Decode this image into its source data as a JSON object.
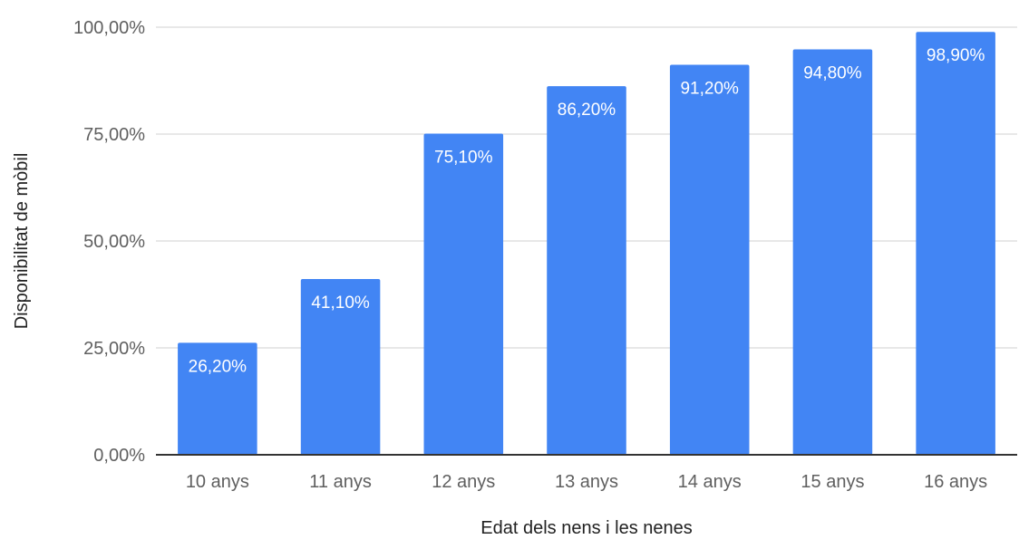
{
  "chart_data": {
    "type": "bar",
    "categories": [
      "10 anys",
      "11 anys",
      "12 anys",
      "13 anys",
      "14 anys",
      "15 anys",
      "16 anys"
    ],
    "series": [
      {
        "values": [
          26.2,
          41.1,
          75.1,
          86.2,
          91.2,
          94.8,
          98.9
        ],
        "data_labels": [
          "26,20%",
          "41,10%",
          "75,10%",
          "86,20%",
          "91,20%",
          "94,80%",
          "98,90%"
        ],
        "color": "#4285f4"
      }
    ],
    "yticks": [
      0,
      25,
      50,
      75,
      100
    ],
    "ytick_labels": [
      "0,00%",
      "25,00%",
      "50,00%",
      "75,00%",
      "100,00%"
    ],
    "ylim": [
      0,
      100
    ],
    "xlabel": "Edat dels nens i les nenes",
    "ylabel": "Disponibilitat de mòbil",
    "title": "",
    "grid": true,
    "legend": "none"
  }
}
